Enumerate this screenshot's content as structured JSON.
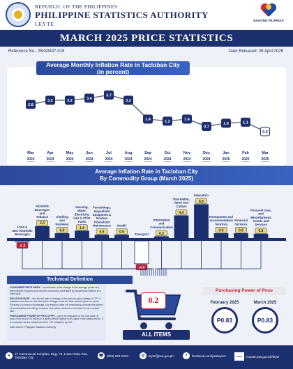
{
  "header": {
    "republic": "REPUBLIC OF THE PHILIPPINES",
    "agency": "PHILIPPINE STATISTICS AUTHORITY",
    "province": "LEYTE",
    "bp_logo": "BAGONG PILIPINAS"
  },
  "title": "MARCH 2025 PRICE STATISTICS",
  "reference": "Reference No.: 25IG0837-015",
  "released": "Date Released: 08 April 2025",
  "colors": {
    "navy": "#1c2f6e",
    "blue": "#2b4a9c",
    "red": "#d21f2e",
    "gray": "#6b7280",
    "bar_dark": "#1c2f6e"
  },
  "chart_data": [
    {
      "type": "line",
      "title": "Average Monthly Inflation Rate in Tacloban City",
      "subtitle": "(in percent)",
      "categories": [
        {
          "month": "Mar",
          "year": "2024"
        },
        {
          "month": "Apr",
          "year": "2024"
        },
        {
          "month": "May",
          "year": "2024"
        },
        {
          "month": "Jun",
          "year": "2024"
        },
        {
          "month": "Jul",
          "year": "2024"
        },
        {
          "month": "Aug",
          "year": "2024"
        },
        {
          "month": "Sep",
          "year": "2024"
        },
        {
          "month": "Oct",
          "year": "2024"
        },
        {
          "month": "Nov",
          "year": "2024"
        },
        {
          "month": "Dec",
          "year": "2024"
        },
        {
          "month": "Jan",
          "year": "2025"
        },
        {
          "month": "Feb",
          "year": "2025"
        },
        {
          "month": "Mar",
          "year": "2025"
        }
      ],
      "values": [
        2.8,
        3.2,
        3.2,
        3.4,
        3.7,
        3.2,
        1.4,
        1.2,
        1.4,
        0.7,
        1.0,
        1.1,
        0.2
      ],
      "labels": [
        "2.8",
        "3.2",
        "3.2",
        "3.4",
        "3.7",
        "3.2",
        "1.4",
        "1.2",
        "1.4",
        "0.7",
        "1.0",
        "1.1",
        "0.2"
      ],
      "highlight_last": true,
      "ylim": [
        0,
        4
      ]
    },
    {
      "type": "bar",
      "title": "Average Inflation Rate in Tacloban City",
      "subtitle": "By Commodity Group (March 2025)",
      "categories": [
        [
          "Food &",
          "Non-Alcoholic",
          "Beverages"
        ],
        [
          "Alcoholic",
          "Beverages",
          "and",
          "Tobacco"
        ],
        [
          "Clothing",
          "and",
          "Footwear"
        ],
        [
          "Housing,",
          "Water,",
          "Electricity,",
          "Gas & other",
          "Fuels"
        ],
        [
          "Furnishings,",
          "Household",
          "Equipment &",
          "Routine",
          "Household",
          "Maintenance"
        ],
        [
          "Health"
        ],
        [
          "Transport"
        ],
        [
          "Information",
          "and",
          "Communication"
        ],
        [
          "Recreation,",
          "Sport and",
          "Culture"
        ],
        [
          "Education"
        ],
        [
          "Restaurants and",
          "Accommodation",
          "Services"
        ],
        [
          "Financial",
          "Services"
        ],
        [
          "Personal Care,",
          "and",
          "Miscellaneous",
          "Goods and",
          "Services"
        ]
      ],
      "values": [
        -0.2,
        2.3,
        0.9,
        1.4,
        0.6,
        0.6,
        -4.5,
        0.3,
        4.4,
        6.6,
        0.9,
        0.9,
        0.8
      ],
      "labels": [
        "-0.2",
        "2.3",
        "0.9",
        "1.4",
        "0.6",
        "0.6",
        "-4.5",
        "0.3",
        "4.4",
        "6.6",
        "0.9",
        "0.9",
        "0.8"
      ],
      "all_items_label": "ALL ITEMS",
      "all_items_value": "0.2"
    }
  ],
  "definition": {
    "heading": "Technical Definition",
    "cpi_term": "CONSUMER PRICE INDEX",
    "cpi_text": " – an indicator of the change in the average prices of a fixed basket of goods and services commonly purchased by households relative to a base year.",
    "inflation_term": "INFLATION RATE",
    "inflation_text": " – the annual rate of change or the year-on-year change in CPI. It indicates how fast or how slow price changes over two time periods (year-on-year). Contrary to common knowledge, low inflation does not necessarily connote that prices of commodities are falling. It means that prices continue to increase but at a slower rate.",
    "ppp_term": "PURCHASING POWER OF PESO (PPP)",
    "ppp_text": " – gives an indication of the real value of peso (how much it is worth) in a given period relative to its value in the based period. It is computed as the reciprocal of the CPI multiplied by 100.",
    "source": "Data Source: Philippine Statistics Authority"
  },
  "purchasing": {
    "heading": "Purchasing Power of Peso",
    "items": [
      {
        "month": "February 2025",
        "value": "P0.83"
      },
      {
        "month": "March 2025",
        "value": "P0.83"
      }
    ]
  },
  "footer": {
    "address": "JY Commercial Complex, Brgy. 74, Lower Nula Tula, Tacloban City",
    "phone": "(053) 523-2343",
    "email": "leyte@psa.gov.ph",
    "facebook": "facebook.com/psaleyte2",
    "web": "rsso08.psa.gov.ph/leyte"
  }
}
